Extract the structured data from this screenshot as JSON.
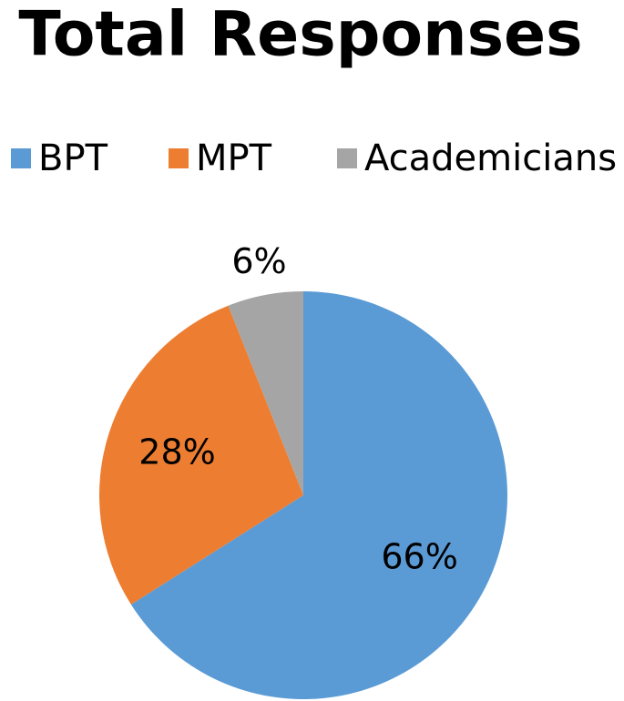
{
  "chart_data": {
    "type": "pie",
    "title": "Total Responses",
    "categories": [
      "BPT",
      "MPT",
      "Academicians"
    ],
    "values": [
      66,
      28,
      6
    ],
    "value_labels": [
      "66%",
      "28%",
      "6%"
    ],
    "colors": [
      "#5b9bd5",
      "#ed7d31",
      "#a5a5a5"
    ],
    "legend": "top"
  }
}
